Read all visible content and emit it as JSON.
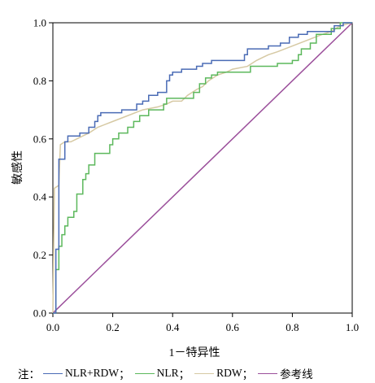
{
  "chart_data": {
    "type": "line",
    "title": "",
    "xlabel": "1－特异性",
    "ylabel": "敏感性",
    "xlim": [
      0,
      1
    ],
    "ylim": [
      0,
      1
    ],
    "x_ticks": [
      "0.0",
      "0.2",
      "0.4",
      "0.6",
      "0.8",
      "1.0"
    ],
    "y_ticks": [
      "0.0",
      "0.2",
      "0.4",
      "0.6",
      "0.8",
      "1.0"
    ],
    "grid": false,
    "legend_position": "bottom",
    "series": [
      {
        "name": "NLR+RDW",
        "color": "#4a6bb5",
        "step": true,
        "points": [
          [
            0,
            0
          ],
          [
            0.01,
            0
          ],
          [
            0.01,
            0.22
          ],
          [
            0.02,
            0.22
          ],
          [
            0.02,
            0.53
          ],
          [
            0.04,
            0.53
          ],
          [
            0.04,
            0.59
          ],
          [
            0.05,
            0.59
          ],
          [
            0.05,
            0.61
          ],
          [
            0.09,
            0.61
          ],
          [
            0.09,
            0.62
          ],
          [
            0.12,
            0.62
          ],
          [
            0.12,
            0.64
          ],
          [
            0.14,
            0.64
          ],
          [
            0.14,
            0.66
          ],
          [
            0.15,
            0.66
          ],
          [
            0.15,
            0.68
          ],
          [
            0.16,
            0.68
          ],
          [
            0.16,
            0.69
          ],
          [
            0.23,
            0.69
          ],
          [
            0.23,
            0.7
          ],
          [
            0.28,
            0.7
          ],
          [
            0.28,
            0.72
          ],
          [
            0.3,
            0.72
          ],
          [
            0.3,
            0.73
          ],
          [
            0.32,
            0.73
          ],
          [
            0.32,
            0.75
          ],
          [
            0.35,
            0.75
          ],
          [
            0.35,
            0.76
          ],
          [
            0.38,
            0.76
          ],
          [
            0.38,
            0.8
          ],
          [
            0.39,
            0.8
          ],
          [
            0.39,
            0.82
          ],
          [
            0.4,
            0.82
          ],
          [
            0.4,
            0.83
          ],
          [
            0.43,
            0.83
          ],
          [
            0.43,
            0.84
          ],
          [
            0.48,
            0.84
          ],
          [
            0.48,
            0.85
          ],
          [
            0.5,
            0.85
          ],
          [
            0.5,
            0.86
          ],
          [
            0.53,
            0.86
          ],
          [
            0.53,
            0.87
          ],
          [
            0.64,
            0.87
          ],
          [
            0.64,
            0.89
          ],
          [
            0.65,
            0.89
          ],
          [
            0.65,
            0.91
          ],
          [
            0.72,
            0.91
          ],
          [
            0.72,
            0.92
          ],
          [
            0.76,
            0.92
          ],
          [
            0.76,
            0.93
          ],
          [
            0.79,
            0.93
          ],
          [
            0.79,
            0.95
          ],
          [
            0.82,
            0.95
          ],
          [
            0.82,
            0.96
          ],
          [
            0.85,
            0.96
          ],
          [
            0.85,
            0.97
          ],
          [
            0.94,
            0.97
          ],
          [
            0.94,
            0.99
          ],
          [
            0.97,
            0.99
          ],
          [
            0.97,
            1.0
          ],
          [
            1.0,
            1.0
          ]
        ]
      },
      {
        "name": "NLR",
        "color": "#5cb85c",
        "step": true,
        "points": [
          [
            0,
            0
          ],
          [
            0.01,
            0
          ],
          [
            0.01,
            0.15
          ],
          [
            0.02,
            0.15
          ],
          [
            0.02,
            0.23
          ],
          [
            0.03,
            0.23
          ],
          [
            0.03,
            0.27
          ],
          [
            0.04,
            0.27
          ],
          [
            0.04,
            0.3
          ],
          [
            0.05,
            0.3
          ],
          [
            0.05,
            0.33
          ],
          [
            0.07,
            0.33
          ],
          [
            0.07,
            0.35
          ],
          [
            0.08,
            0.35
          ],
          [
            0.08,
            0.41
          ],
          [
            0.1,
            0.41
          ],
          [
            0.1,
            0.46
          ],
          [
            0.11,
            0.46
          ],
          [
            0.11,
            0.48
          ],
          [
            0.12,
            0.48
          ],
          [
            0.12,
            0.51
          ],
          [
            0.14,
            0.51
          ],
          [
            0.14,
            0.55
          ],
          [
            0.19,
            0.55
          ],
          [
            0.19,
            0.58
          ],
          [
            0.2,
            0.58
          ],
          [
            0.2,
            0.6
          ],
          [
            0.22,
            0.6
          ],
          [
            0.22,
            0.62
          ],
          [
            0.25,
            0.62
          ],
          [
            0.25,
            0.64
          ],
          [
            0.27,
            0.64
          ],
          [
            0.27,
            0.66
          ],
          [
            0.29,
            0.66
          ],
          [
            0.29,
            0.68
          ],
          [
            0.32,
            0.68
          ],
          [
            0.32,
            0.7
          ],
          [
            0.37,
            0.7
          ],
          [
            0.37,
            0.72
          ],
          [
            0.38,
            0.72
          ],
          [
            0.38,
            0.74
          ],
          [
            0.47,
            0.74
          ],
          [
            0.47,
            0.76
          ],
          [
            0.49,
            0.76
          ],
          [
            0.49,
            0.79
          ],
          [
            0.51,
            0.79
          ],
          [
            0.51,
            0.81
          ],
          [
            0.53,
            0.81
          ],
          [
            0.53,
            0.82
          ],
          [
            0.55,
            0.82
          ],
          [
            0.55,
            0.83
          ],
          [
            0.66,
            0.83
          ],
          [
            0.66,
            0.85
          ],
          [
            0.75,
            0.85
          ],
          [
            0.75,
            0.86
          ],
          [
            0.8,
            0.86
          ],
          [
            0.8,
            0.87
          ],
          [
            0.82,
            0.87
          ],
          [
            0.82,
            0.89
          ],
          [
            0.83,
            0.89
          ],
          [
            0.83,
            0.91
          ],
          [
            0.86,
            0.91
          ],
          [
            0.86,
            0.93
          ],
          [
            0.88,
            0.93
          ],
          [
            0.88,
            0.96
          ],
          [
            0.93,
            0.96
          ],
          [
            0.93,
            0.98
          ],
          [
            0.96,
            0.98
          ],
          [
            0.96,
            1.0
          ],
          [
            1.0,
            1.0
          ]
        ]
      },
      {
        "name": "RDW",
        "color": "#d6c9a3",
        "step": false,
        "points": [
          [
            0,
            0
          ],
          [
            0.005,
            0.43
          ],
          [
            0.02,
            0.44
          ],
          [
            0.025,
            0.58
          ],
          [
            0.04,
            0.59
          ],
          [
            0.06,
            0.59
          ],
          [
            0.08,
            0.6
          ],
          [
            0.1,
            0.61
          ],
          [
            0.12,
            0.62
          ],
          [
            0.15,
            0.64
          ],
          [
            0.2,
            0.66
          ],
          [
            0.25,
            0.68
          ],
          [
            0.3,
            0.7
          ],
          [
            0.35,
            0.71
          ],
          [
            0.38,
            0.72
          ],
          [
            0.4,
            0.73
          ],
          [
            0.43,
            0.73
          ],
          [
            0.45,
            0.75
          ],
          [
            0.48,
            0.77
          ],
          [
            0.5,
            0.78
          ],
          [
            0.52,
            0.8
          ],
          [
            0.55,
            0.82
          ],
          [
            0.58,
            0.83
          ],
          [
            0.6,
            0.84
          ],
          [
            0.65,
            0.85
          ],
          [
            0.68,
            0.87
          ],
          [
            0.7,
            0.88
          ],
          [
            0.72,
            0.89
          ],
          [
            0.75,
            0.9
          ],
          [
            0.8,
            0.92
          ],
          [
            0.85,
            0.94
          ],
          [
            0.9,
            0.96
          ],
          [
            0.93,
            0.97
          ],
          [
            0.96,
            0.99
          ],
          [
            1.0,
            1.0
          ]
        ]
      },
      {
        "name": "参考线",
        "color": "#9b4f9b",
        "step": false,
        "points": [
          [
            0,
            0
          ],
          [
            1,
            1
          ]
        ]
      }
    ]
  },
  "legend": {
    "note": "注：",
    "items": [
      {
        "label": "NLR+RDW",
        "sep": "；",
        "color": "#4a6bb5"
      },
      {
        "label": "NLR",
        "sep": "；",
        "color": "#5cb85c"
      },
      {
        "label": "RDW",
        "sep": "；",
        "color": "#d6c9a3"
      },
      {
        "label": "参考线",
        "sep": "",
        "color": "#9b4f9b"
      }
    ]
  }
}
